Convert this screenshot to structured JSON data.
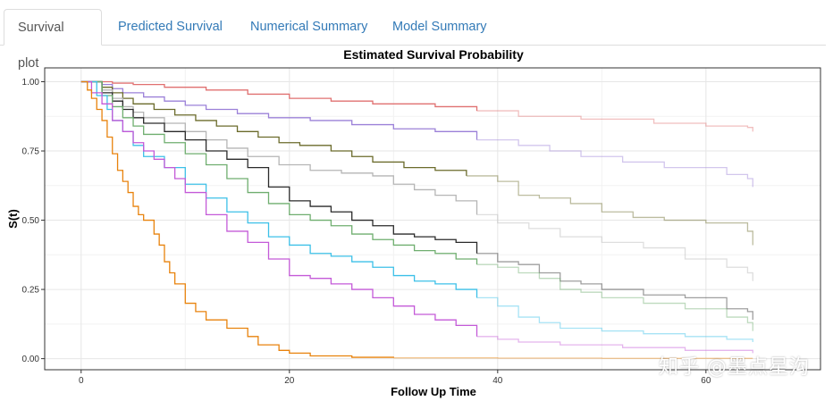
{
  "tabs": [
    {
      "label": "Survival plot",
      "active": true
    },
    {
      "label": "Predicted Survival",
      "active": false
    },
    {
      "label": "Numerical Summary",
      "active": false
    },
    {
      "label": "Model Summary",
      "active": false
    }
  ],
  "watermark": "知乎 @墨点星沟",
  "chart_data": {
    "type": "line",
    "step": true,
    "title": "Estimated Survival Probability",
    "xlabel": "Follow Up Time",
    "ylabel": "S(t)",
    "xlim": [
      -3.5,
      71
    ],
    "ylim": [
      -0.04,
      1.05
    ],
    "xticks": [
      0,
      20,
      40,
      60
    ],
    "xtick_labels": [
      "0",
      "20",
      "40",
      "60"
    ],
    "yticks": [
      0,
      0.25,
      0.5,
      0.75,
      1
    ],
    "ytick_labels": [
      "0.00",
      "0.25",
      "0.50",
      "0.75",
      "1.00"
    ],
    "grid": true,
    "series": [
      {
        "name": "curve-red",
        "color": "#e07070",
        "points": [
          [
            0,
            1
          ],
          [
            3,
            0.995
          ],
          [
            5,
            0.99
          ],
          [
            8,
            0.98
          ],
          [
            12,
            0.97
          ],
          [
            16,
            0.955
          ],
          [
            20,
            0.94
          ],
          [
            24,
            0.93
          ],
          [
            28,
            0.92
          ],
          [
            34,
            0.91
          ],
          [
            38,
            0.895
          ],
          [
            42,
            0.875
          ],
          [
            48,
            0.865
          ],
          [
            55,
            0.85
          ],
          [
            60,
            0.84
          ],
          [
            64,
            0.835
          ],
          [
            64.5,
            0.82
          ]
        ]
      },
      {
        "name": "curve-purple",
        "color": "#9b80d8",
        "points": [
          [
            0,
            1
          ],
          [
            2,
            0.99
          ],
          [
            3,
            0.975
          ],
          [
            4,
            0.96
          ],
          [
            6,
            0.945
          ],
          [
            8,
            0.93
          ],
          [
            10,
            0.915
          ],
          [
            12,
            0.9
          ],
          [
            15,
            0.885
          ],
          [
            18,
            0.87
          ],
          [
            22,
            0.86
          ],
          [
            26,
            0.845
          ],
          [
            30,
            0.83
          ],
          [
            34,
            0.82
          ],
          [
            38,
            0.79
          ],
          [
            42,
            0.77
          ],
          [
            45,
            0.75
          ],
          [
            48,
            0.73
          ],
          [
            52,
            0.71
          ],
          [
            56,
            0.69
          ],
          [
            62,
            0.665
          ],
          [
            64,
            0.65
          ],
          [
            64.5,
            0.62
          ]
        ]
      },
      {
        "name": "curve-olive",
        "color": "#6b6b2b",
        "points": [
          [
            0,
            1
          ],
          [
            2,
            0.98
          ],
          [
            3,
            0.96
          ],
          [
            4,
            0.94
          ],
          [
            5,
            0.92
          ],
          [
            7,
            0.9
          ],
          [
            9,
            0.88
          ],
          [
            11,
            0.86
          ],
          [
            13,
            0.84
          ],
          [
            15,
            0.82
          ],
          [
            17,
            0.8
          ],
          [
            19,
            0.78
          ],
          [
            21,
            0.77
          ],
          [
            24,
            0.75
          ],
          [
            26,
            0.73
          ],
          [
            28,
            0.71
          ],
          [
            31,
            0.69
          ],
          [
            34,
            0.68
          ],
          [
            37,
            0.66
          ],
          [
            40,
            0.64
          ],
          [
            42,
            0.59
          ],
          [
            44,
            0.58
          ],
          [
            47,
            0.56
          ],
          [
            50,
            0.53
          ],
          [
            53,
            0.51
          ],
          [
            56,
            0.5
          ],
          [
            60,
            0.49
          ],
          [
            64,
            0.46
          ],
          [
            64.5,
            0.41
          ]
        ]
      },
      {
        "name": "curve-gray",
        "color": "#b5b5b5",
        "points": [
          [
            0,
            1
          ],
          [
            2,
            0.97
          ],
          [
            3,
            0.94
          ],
          [
            4,
            0.91
          ],
          [
            5,
            0.89
          ],
          [
            6,
            0.87
          ],
          [
            8,
            0.85
          ],
          [
            10,
            0.82
          ],
          [
            12,
            0.79
          ],
          [
            14,
            0.76
          ],
          [
            16,
            0.73
          ],
          [
            19,
            0.7
          ],
          [
            22,
            0.68
          ],
          [
            25,
            0.67
          ],
          [
            28,
            0.66
          ],
          [
            30,
            0.63
          ],
          [
            32,
            0.61
          ],
          [
            34,
            0.59
          ],
          [
            36,
            0.57
          ],
          [
            38,
            0.52
          ],
          [
            40,
            0.49
          ],
          [
            43,
            0.47
          ],
          [
            46,
            0.44
          ],
          [
            50,
            0.42
          ],
          [
            54,
            0.4
          ],
          [
            58,
            0.36
          ],
          [
            62,
            0.33
          ],
          [
            64,
            0.31
          ],
          [
            64.5,
            0.28
          ]
        ]
      },
      {
        "name": "curve-black",
        "color": "#2a2a2a",
        "points": [
          [
            0,
            1
          ],
          [
            2,
            0.96
          ],
          [
            3,
            0.93
          ],
          [
            4,
            0.9
          ],
          [
            5,
            0.87
          ],
          [
            6,
            0.85
          ],
          [
            8,
            0.82
          ],
          [
            10,
            0.79
          ],
          [
            12,
            0.75
          ],
          [
            14,
            0.72
          ],
          [
            16,
            0.69
          ],
          [
            18,
            0.62
          ],
          [
            20,
            0.57
          ],
          [
            22,
            0.55
          ],
          [
            24,
            0.53
          ],
          [
            26,
            0.5
          ],
          [
            28,
            0.48
          ],
          [
            30,
            0.45
          ],
          [
            32,
            0.44
          ],
          [
            34,
            0.43
          ],
          [
            36,
            0.42
          ],
          [
            38,
            0.38
          ],
          [
            40,
            0.35
          ],
          [
            42,
            0.34
          ],
          [
            44,
            0.31
          ],
          [
            46,
            0.28
          ],
          [
            48,
            0.27
          ],
          [
            50,
            0.25
          ],
          [
            54,
            0.23
          ],
          [
            58,
            0.22
          ],
          [
            62,
            0.18
          ],
          [
            64,
            0.17
          ],
          [
            64.5,
            0.14
          ]
        ]
      },
      {
        "name": "curve-green",
        "color": "#6fae6f",
        "points": [
          [
            0,
            1
          ],
          [
            2,
            0.95
          ],
          [
            3,
            0.91
          ],
          [
            4,
            0.87
          ],
          [
            5,
            0.84
          ],
          [
            6,
            0.81
          ],
          [
            8,
            0.78
          ],
          [
            10,
            0.74
          ],
          [
            12,
            0.7
          ],
          [
            14,
            0.65
          ],
          [
            16,
            0.6
          ],
          [
            18,
            0.56
          ],
          [
            20,
            0.52
          ],
          [
            22,
            0.5
          ],
          [
            24,
            0.48
          ],
          [
            26,
            0.45
          ],
          [
            28,
            0.43
          ],
          [
            30,
            0.41
          ],
          [
            32,
            0.39
          ],
          [
            34,
            0.38
          ],
          [
            36,
            0.36
          ],
          [
            38,
            0.34
          ],
          [
            40,
            0.33
          ],
          [
            42,
            0.31
          ],
          [
            44,
            0.29
          ],
          [
            46,
            0.25
          ],
          [
            48,
            0.24
          ],
          [
            50,
            0.22
          ],
          [
            54,
            0.2
          ],
          [
            58,
            0.18
          ],
          [
            62,
            0.15
          ],
          [
            64,
            0.13
          ],
          [
            64.5,
            0.1
          ]
        ]
      },
      {
        "name": "curve-cyan",
        "color": "#3cc0e8",
        "points": [
          [
            0,
            1
          ],
          [
            1.5,
            0.95
          ],
          [
            2.5,
            0.9
          ],
          [
            3,
            0.86
          ],
          [
            4,
            0.82
          ],
          [
            5,
            0.77
          ],
          [
            6,
            0.73
          ],
          [
            8,
            0.69
          ],
          [
            10,
            0.63
          ],
          [
            12,
            0.58
          ],
          [
            14,
            0.53
          ],
          [
            16,
            0.49
          ],
          [
            18,
            0.44
          ],
          [
            20,
            0.41
          ],
          [
            22,
            0.38
          ],
          [
            24,
            0.37
          ],
          [
            26,
            0.35
          ],
          [
            28,
            0.33
          ],
          [
            30,
            0.3
          ],
          [
            32,
            0.28
          ],
          [
            34,
            0.27
          ],
          [
            36,
            0.25
          ],
          [
            38,
            0.22
          ],
          [
            40,
            0.19
          ],
          [
            42,
            0.15
          ],
          [
            44,
            0.13
          ],
          [
            46,
            0.11
          ],
          [
            50,
            0.1
          ],
          [
            54,
            0.09
          ],
          [
            58,
            0.08
          ],
          [
            62,
            0.07
          ],
          [
            64.5,
            0.06
          ]
        ]
      },
      {
        "name": "curve-magenta",
        "color": "#c45ad8",
        "points": [
          [
            0,
            1
          ],
          [
            1,
            0.96
          ],
          [
            2,
            0.92
          ],
          [
            3,
            0.86
          ],
          [
            4,
            0.82
          ],
          [
            5,
            0.78
          ],
          [
            6,
            0.75
          ],
          [
            7,
            0.72
          ],
          [
            8,
            0.69
          ],
          [
            9,
            0.65
          ],
          [
            10,
            0.6
          ],
          [
            12,
            0.52
          ],
          [
            14,
            0.46
          ],
          [
            16,
            0.42
          ],
          [
            18,
            0.36
          ],
          [
            20,
            0.3
          ],
          [
            22,
            0.29
          ],
          [
            24,
            0.27
          ],
          [
            26,
            0.25
          ],
          [
            28,
            0.22
          ],
          [
            30,
            0.19
          ],
          [
            32,
            0.16
          ],
          [
            34,
            0.14
          ],
          [
            36,
            0.12
          ],
          [
            38,
            0.08
          ],
          [
            40,
            0.07
          ],
          [
            42,
            0.06
          ],
          [
            46,
            0.05
          ],
          [
            52,
            0.04
          ],
          [
            58,
            0.03
          ],
          [
            64.5,
            0.02
          ]
        ]
      },
      {
        "name": "curve-orange",
        "color": "#e8820c",
        "points": [
          [
            0,
            1
          ],
          [
            0.6,
            0.97
          ],
          [
            1,
            0.94
          ],
          [
            1.5,
            0.9
          ],
          [
            2,
            0.86
          ],
          [
            2.5,
            0.8
          ],
          [
            3,
            0.74
          ],
          [
            3.5,
            0.68
          ],
          [
            4,
            0.64
          ],
          [
            4.5,
            0.6
          ],
          [
            5,
            0.55
          ],
          [
            5.5,
            0.52
          ],
          [
            6,
            0.5
          ],
          [
            7,
            0.45
          ],
          [
            7.5,
            0.41
          ],
          [
            8,
            0.35
          ],
          [
            8.5,
            0.31
          ],
          [
            9,
            0.27
          ],
          [
            10,
            0.2
          ],
          [
            11,
            0.17
          ],
          [
            12,
            0.14
          ],
          [
            14,
            0.11
          ],
          [
            16,
            0.08
          ],
          [
            17,
            0.05
          ],
          [
            19,
            0.03
          ],
          [
            20,
            0.02
          ],
          [
            22,
            0.01
          ],
          [
            26,
            0.005
          ],
          [
            30,
            0.003
          ],
          [
            40,
            0.002
          ],
          [
            50,
            0.001
          ],
          [
            64.5,
            0.001
          ]
        ]
      }
    ]
  }
}
